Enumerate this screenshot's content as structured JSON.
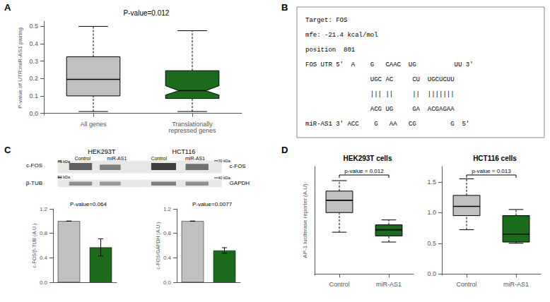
{
  "chart_data": [
    {
      "type": "box",
      "panel": "A",
      "title": "P-value=0.012",
      "ylabel": "P-value of UTR:miR-AS1 pairing",
      "categories": [
        "All genes",
        "Translationally\nrepressed genes"
      ],
      "values": [
        [
          0.01,
          0.1,
          0.195,
          0.325,
          0.5
        ],
        [
          0.01,
          0.085,
          0.13,
          0.245,
          0.475
        ]
      ],
      "notches": [
        null,
        [
          0.105,
          0.158
        ]
      ],
      "colors": [
        "#c0c0c0",
        "#1a6b1a"
      ],
      "ylim": [
        -0.01,
        0.53
      ],
      "yticks": [
        {
          "value": 0.0,
          "label": "0.0"
        },
        0.1,
        0.2,
        0.3,
        0.4,
        0.5
      ],
      "grid": false
    },
    {
      "type": "text",
      "panel": "B",
      "lines": [
        "Target: FOS",
        "mfe: -21.4 kcal/mol",
        "position  801",
        "FOS UTR 5'  A    G   CAAC  UG          UU 3'",
        "                 UGC AC     CU  UGCUCUU",
        "                 ||| ||     ||  |||||||",
        "                 ACG UG     GA  ACGAGAA",
        "miR-AS1 3' ACC    G   AA   CG         G  5'"
      ]
    },
    {
      "type": "blot",
      "panel": "C",
      "groups": [
        {
          "title": "HEK293T",
          "lanes": [
            "Control",
            "miR-AS1"
          ],
          "rows": [
            {
              "label": "c-FOS",
              "size": "75 kDa",
              "colors": [
                "#606060",
                "#808080"
              ]
            },
            {
              "label": "β-TUB",
              "size": "50 kDa",
              "colors": [
                "#909090",
                "#999999"
              ]
            }
          ]
        },
        {
          "title": "HCT116",
          "lanes": [
            "Control",
            "miR-AS1"
          ],
          "rows": [
            {
              "label": "c-FOS",
              "size": "70 kDa",
              "colors": [
                "#404040",
                "#707070"
              ]
            },
            {
              "label": "GAPDH",
              "size": "40 kDa",
              "colors": [
                "#808080",
                "#909090"
              ]
            }
          ]
        }
      ]
    },
    {
      "type": "bar",
      "title": "P-value=0.064",
      "ylabel": "c-FOS/β-TUB (A.U.)",
      "categories": [
        null,
        null
      ],
      "values": [
        1.0,
        0.57
      ],
      "errors": [
        0.0,
        0.14
      ],
      "colors": [
        "#c0c0c0",
        "#1a6b1a"
      ],
      "ylim": [
        0.0,
        1.2
      ],
      "yticks": [
        {
          "value": 0.0,
          "label": "0.0"
        },
        0.4,
        0.8,
        1.2
      ],
      "tick_labels": "y",
      "grid": false
    },
    {
      "type": "bar",
      "title": "P-value=0.0077",
      "ylabel": "c-FOS/GAPDH (A.U.)",
      "categories": [
        null,
        null
      ],
      "values": [
        1.0,
        0.52
      ],
      "errors": [
        0.0,
        0.045
      ],
      "colors": [
        "#c0c0c0",
        "#1a6b1a"
      ],
      "ylim": [
        0.0,
        1.2
      ],
      "yticks": [
        {
          "value": 0.0,
          "label": "0.0"
        },
        0.4,
        0.8,
        1.2
      ],
      "tick_labels": "y",
      "grid": false
    },
    {
      "type": "box",
      "panel": "D",
      "title": "HEK293T cells",
      "annotation": "p-value = 0.012",
      "ylabel": "AP-1 luciferase reporter (A.U)",
      "categories": [
        "Control",
        "miR-AS1"
      ],
      "values": [
        [
          0.68,
          1.0,
          1.2,
          1.35,
          1.52
        ],
        [
          0.52,
          0.62,
          0.72,
          0.8,
          0.88
        ]
      ],
      "colors": [
        "#c0c0c0",
        "#1a6b1a"
      ],
      "ylim": [
        -0.02,
        1.75
      ],
      "yticks": [],
      "tick_labels": "x",
      "grid": false
    },
    {
      "type": "box",
      "title": "HCT116 cells",
      "annotation": "p-value = 0.013",
      "categories": [
        "Control",
        "miR-AS1"
      ],
      "values": [
        [
          0.72,
          0.95,
          1.1,
          1.28,
          1.55
        ],
        [
          0.5,
          0.52,
          0.65,
          0.95,
          1.05
        ]
      ],
      "colors": [
        "#c0c0c0",
        "#1a6b1a"
      ],
      "ylim": [
        -0.02,
        1.75
      ],
      "yticks": [
        {
          "value": 0.0,
          "label": "0.0"
        },
        0.5,
        {
          "value": 1.0,
          "label": "1.0"
        },
        1.5
      ],
      "grid": false
    }
  ]
}
